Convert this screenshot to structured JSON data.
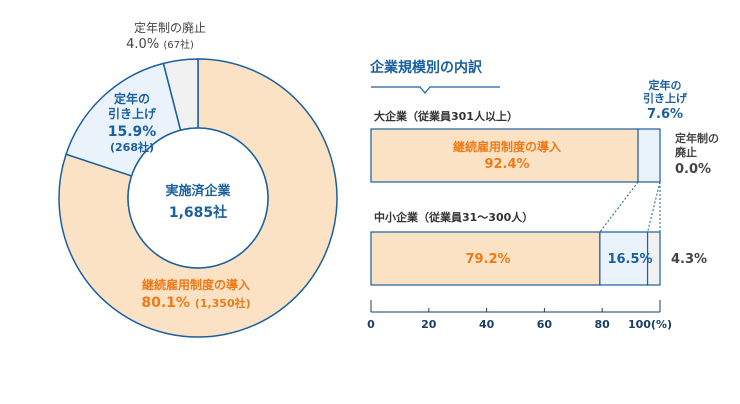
{
  "colors": {
    "continuation": "#fce2c4",
    "raise": "#eaf3fb",
    "abolish": "#f1f1f1",
    "stroke": "#1a5f9e",
    "orange_text": "#ee7a1a",
    "blue_text": "#1a5f9e",
    "gray_text": "#444444"
  },
  "chart_data": [
    {
      "type": "pie",
      "variant": "donut",
      "center_label": [
        "実施済企業",
        "1,685社"
      ],
      "slices": [
        {
          "name": "継続雇用制度の導入",
          "value": 80.1,
          "pct_label": "80.1%",
          "count_label": "(1,350社)"
        },
        {
          "name": "定年の引き上げ",
          "name_lines": [
            "定年の",
            "引き上げ"
          ],
          "value": 15.9,
          "pct_label": "15.9%",
          "count_label": "(268社)"
        },
        {
          "name": "定年制の廃止",
          "value": 4.0,
          "pct_label": "4.0%",
          "count_label": "(67社)"
        }
      ]
    },
    {
      "type": "bar",
      "orientation": "horizontal",
      "stacked": true,
      "title": "企業規模別の内訳",
      "categories": [
        "大企業（従業員301人以上）",
        "中小企業（従業員31〜300人）"
      ],
      "series": [
        {
          "name": "継続雇用制度の導入",
          "values": [
            92.4,
            79.2
          ],
          "labels": [
            "92.4%",
            "79.2%"
          ]
        },
        {
          "name": "定年の引き上げ",
          "name_lines": [
            "定年の",
            "引き上げ"
          ],
          "values": [
            7.6,
            16.5
          ],
          "labels": [
            "7.6%",
            "16.5%"
          ]
        },
        {
          "name": "定年制の廃止",
          "name_lines": [
            "定年制の",
            "廃止"
          ],
          "values": [
            0.0,
            4.3
          ],
          "labels": [
            "0.0%",
            "4.3%"
          ]
        }
      ],
      "xlim": [
        0,
        100
      ],
      "xticks": [
        0,
        20,
        40,
        60,
        80,
        100
      ],
      "xtick_labels": [
        "0",
        "20",
        "40",
        "60",
        "80",
        "100(%)"
      ]
    }
  ]
}
